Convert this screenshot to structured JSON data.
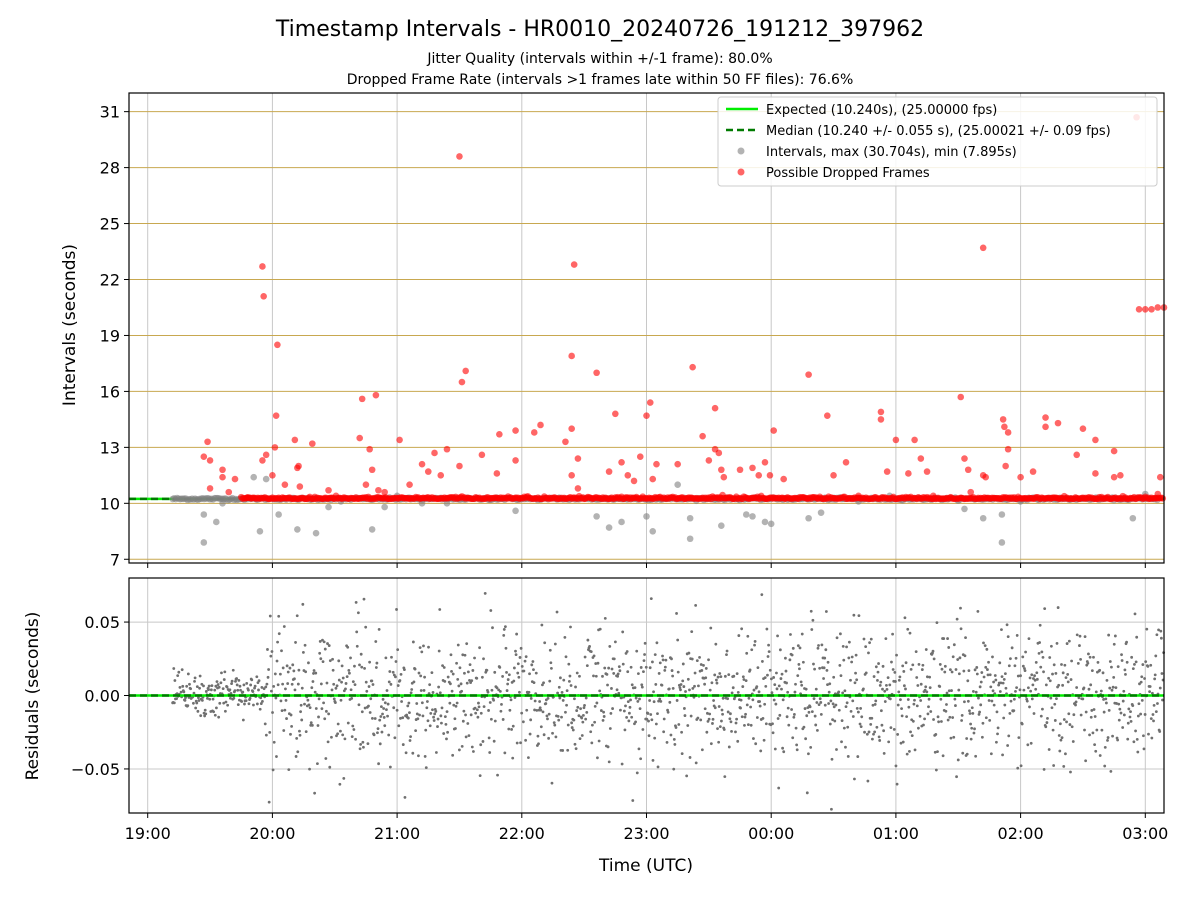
{
  "figure": {
    "title": "Timestamp Intervals - HR0010_20240726_191212_397962",
    "subtitle_1": "Jitter Quality (intervals within +/-1 frame): 80.0%",
    "subtitle_2": "Dropped Frame Rate (intervals >1 frames late within 50 FF files): 76.6%"
  },
  "colors": {
    "expected": "#00ee00",
    "median": "#007a00",
    "intervals": "#808080",
    "dropped": "#ff0000",
    "hgrid_top": "#c8a850",
    "grid": "#c8c8c8",
    "residuals": "#707070"
  },
  "chart_data": [
    {
      "type": "scatter",
      "panel": "intervals",
      "ylabel": "Intervals (seconds)",
      "xlabel": "",
      "xlim_hours": [
        18.85,
        27.15
      ],
      "ylim": [
        6.8,
        32.0
      ],
      "yticks": [
        7,
        10,
        13,
        16,
        19,
        22,
        25,
        28,
        31
      ],
      "grid": true,
      "legend_position": "top-right",
      "legend": [
        "Expected (10.240s), (25.00000 fps)",
        "Median (10.240 +/- 0.055 s), (25.00021 +/- 0.09 fps)",
        "Intervals, max (30.704s), min (7.895s)",
        "Possible Dropped Frames"
      ],
      "expected_interval": 10.24,
      "median_interval": 10.24,
      "series": [
        {
          "name": "Intervals, max (30.704s), min (7.895s)",
          "points": [
            [
              19.45,
              7.9
            ],
            [
              19.55,
              9.0
            ],
            [
              19.45,
              9.4
            ],
            [
              19.6,
              10.0
            ],
            [
              19.9,
              8.5
            ],
            [
              19.95,
              11.3
            ],
            [
              19.85,
              11.4
            ],
            [
              20.05,
              9.4
            ],
            [
              20.2,
              8.6
            ],
            [
              20.35,
              8.4
            ],
            [
              20.45,
              9.8
            ],
            [
              20.55,
              10.1
            ],
            [
              20.8,
              8.6
            ],
            [
              20.9,
              9.8
            ],
            [
              21.0,
              10.4
            ],
            [
              21.2,
              10.0
            ],
            [
              21.4,
              10.0
            ],
            [
              21.8,
              10.3
            ],
            [
              21.95,
              9.6
            ],
            [
              22.3,
              10.3
            ],
            [
              22.6,
              9.3
            ],
            [
              22.7,
              8.7
            ],
            [
              22.8,
              9.0
            ],
            [
              23.0,
              9.3
            ],
            [
              23.05,
              8.5
            ],
            [
              23.25,
              11.0
            ],
            [
              23.35,
              8.1
            ],
            [
              23.35,
              9.2
            ],
            [
              23.6,
              8.8
            ],
            [
              23.8,
              9.4
            ],
            [
              23.85,
              9.3
            ],
            [
              23.95,
              9.0
            ],
            [
              24.0,
              8.9
            ],
            [
              24.3,
              9.2
            ],
            [
              24.4,
              9.5
            ],
            [
              24.7,
              10.1
            ],
            [
              24.95,
              10.4
            ],
            [
              25.55,
              9.7
            ],
            [
              25.7,
              9.2
            ],
            [
              25.85,
              7.9
            ],
            [
              25.85,
              9.4
            ],
            [
              26.0,
              10.1
            ],
            [
              26.4,
              10.2
            ],
            [
              26.9,
              9.2
            ],
            [
              27.0,
              10.5
            ]
          ]
        },
        {
          "name": "Possible Dropped Frames",
          "points": [
            [
              19.48,
              13.3
            ],
            [
              19.45,
              12.5
            ],
            [
              19.5,
              12.3
            ],
            [
              19.6,
              11.8
            ],
            [
              19.6,
              11.4
            ],
            [
              19.7,
              11.3
            ],
            [
              19.5,
              10.8
            ],
            [
              19.65,
              10.6
            ],
            [
              19.8,
              10.3
            ],
            [
              19.92,
              22.7
            ],
            [
              19.93,
              21.1
            ],
            [
              20.04,
              18.5
            ],
            [
              19.95,
              12.6
            ],
            [
              19.92,
              12.3
            ],
            [
              20.03,
              14.7
            ],
            [
              20.02,
              13.0
            ],
            [
              20.0,
              11.5
            ],
            [
              20.1,
              11.0
            ],
            [
              20.18,
              13.4
            ],
            [
              20.2,
              11.9
            ],
            [
              20.21,
              12.0
            ],
            [
              20.22,
              10.9
            ],
            [
              20.32,
              13.2
            ],
            [
              20.45,
              10.7
            ],
            [
              20.72,
              15.6
            ],
            [
              20.83,
              15.8
            ],
            [
              20.7,
              13.5
            ],
            [
              20.78,
              12.9
            ],
            [
              20.8,
              11.8
            ],
            [
              20.75,
              11.0
            ],
            [
              20.85,
              10.7
            ],
            [
              20.9,
              10.6
            ],
            [
              21.02,
              13.4
            ],
            [
              21.1,
              11.0
            ],
            [
              21.2,
              12.1
            ],
            [
              21.25,
              11.7
            ],
            [
              21.3,
              12.7
            ],
            [
              21.35,
              11.5
            ],
            [
              21.4,
              12.9
            ],
            [
              21.5,
              28.6
            ],
            [
              21.52,
              16.5
            ],
            [
              21.55,
              17.1
            ],
            [
              21.5,
              12.0
            ],
            [
              21.68,
              12.6
            ],
            [
              21.8,
              11.6
            ],
            [
              21.82,
              13.7
            ],
            [
              21.95,
              13.9
            ],
            [
              21.95,
              12.3
            ],
            [
              22.1,
              13.8
            ],
            [
              22.15,
              14.2
            ],
            [
              22.35,
              13.3
            ],
            [
              22.4,
              17.9
            ],
            [
              22.42,
              22.8
            ],
            [
              22.4,
              14.0
            ],
            [
              22.45,
              12.4
            ],
            [
              22.4,
              11.5
            ],
            [
              22.45,
              10.8
            ],
            [
              22.6,
              17.0
            ],
            [
              22.7,
              11.7
            ],
            [
              22.75,
              14.8
            ],
            [
              22.8,
              12.2
            ],
            [
              22.85,
              11.5
            ],
            [
              22.9,
              11.2
            ],
            [
              22.95,
              12.5
            ],
            [
              23.0,
              14.7
            ],
            [
              23.03,
              15.4
            ],
            [
              23.05,
              11.3
            ],
            [
              23.08,
              12.1
            ],
            [
              23.25,
              12.1
            ],
            [
              23.37,
              17.3
            ],
            [
              23.45,
              13.6
            ],
            [
              23.5,
              12.3
            ],
            [
              23.55,
              15.1
            ],
            [
              23.55,
              12.9
            ],
            [
              23.58,
              12.7
            ],
            [
              23.6,
              11.8
            ],
            [
              23.62,
              11.4
            ],
            [
              23.75,
              11.8
            ],
            [
              23.85,
              11.9
            ],
            [
              23.9,
              11.5
            ],
            [
              23.95,
              12.2
            ],
            [
              23.99,
              11.5
            ],
            [
              24.02,
              13.9
            ],
            [
              24.1,
              11.3
            ],
            [
              24.3,
              16.9
            ],
            [
              24.45,
              14.7
            ],
            [
              24.5,
              11.5
            ],
            [
              24.6,
              12.2
            ],
            [
              24.7,
              10.4
            ],
            [
              24.88,
              14.5
            ],
            [
              24.88,
              14.9
            ],
            [
              24.93,
              11.7
            ],
            [
              25.0,
              13.4
            ],
            [
              25.1,
              11.6
            ],
            [
              25.15,
              13.4
            ],
            [
              25.2,
              12.4
            ],
            [
              25.25,
              11.7
            ],
            [
              25.3,
              10.4
            ],
            [
              25.52,
              15.7
            ],
            [
              25.55,
              12.4
            ],
            [
              25.58,
              11.8
            ],
            [
              25.6,
              10.6
            ],
            [
              25.7,
              23.7
            ],
            [
              25.7,
              11.5
            ],
            [
              25.72,
              11.4
            ],
            [
              25.86,
              14.5
            ],
            [
              25.87,
              14.1
            ],
            [
              25.9,
              13.8
            ],
            [
              25.9,
              12.9
            ],
            [
              25.88,
              12.0
            ],
            [
              26.0,
              11.4
            ],
            [
              26.1,
              11.7
            ],
            [
              26.2,
              14.6
            ],
            [
              26.2,
              14.1
            ],
            [
              26.3,
              14.3
            ],
            [
              26.45,
              12.6
            ],
            [
              26.5,
              14.0
            ],
            [
              26.6,
              13.4
            ],
            [
              26.6,
              11.6
            ],
            [
              26.75,
              11.4
            ],
            [
              26.75,
              12.8
            ],
            [
              26.8,
              11.5
            ],
            [
              26.95,
              20.4
            ],
            [
              27.0,
              20.4
            ],
            [
              27.05,
              20.4
            ],
            [
              27.1,
              20.5
            ],
            [
              27.15,
              20.5
            ],
            [
              26.93,
              30.7
            ],
            [
              27.12,
              11.4
            ],
            [
              27.1,
              10.5
            ]
          ]
        }
      ]
    },
    {
      "type": "scatter",
      "panel": "residuals",
      "ylabel": "Residuals (seconds)",
      "xlabel": "Time (UTC)",
      "xlim_hours": [
        18.85,
        27.15
      ],
      "ylim": [
        -0.08,
        0.08
      ],
      "yticks": [
        -0.05,
        0.0,
        0.05
      ],
      "ytick_labels": [
        "−0.05",
        "0.00",
        "0.05"
      ],
      "xticks_hours": [
        19,
        20,
        21,
        22,
        23,
        24,
        25,
        26,
        27
      ],
      "xtick_labels": [
        "19:00",
        "20:00",
        "21:00",
        "22:00",
        "23:00",
        "00:00",
        "01:00",
        "02:00",
        "03:00"
      ],
      "grid": true
    }
  ]
}
